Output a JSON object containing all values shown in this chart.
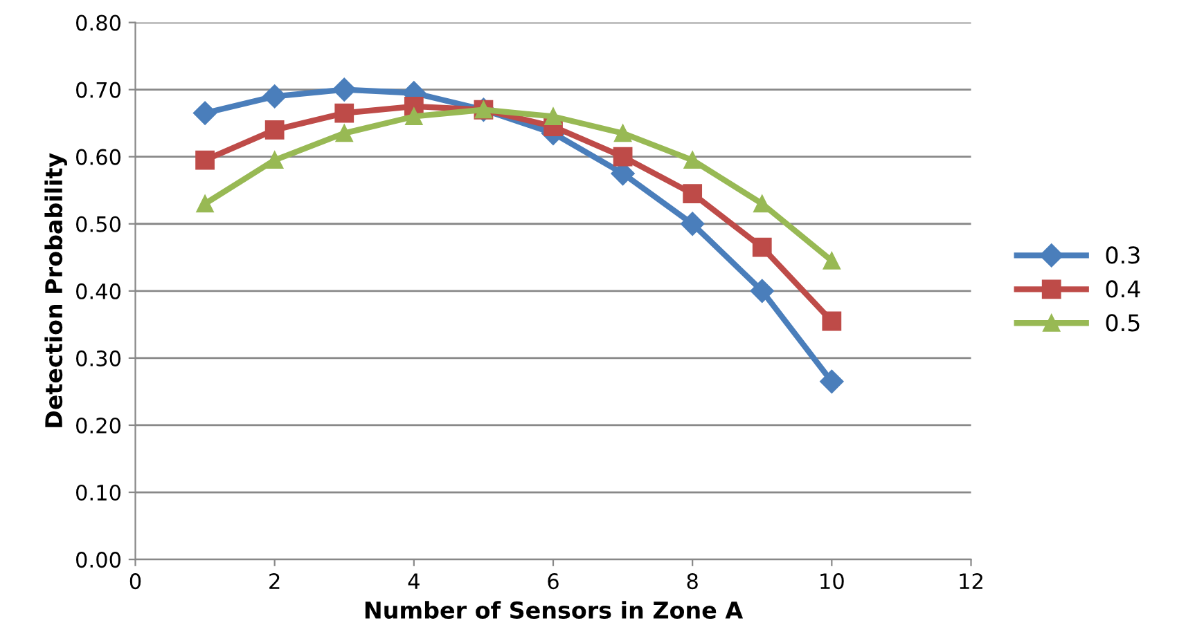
{
  "chart_data": {
    "type": "line",
    "xlabel": "Number of Sensors in Zone A",
    "ylabel": "Detection Probability",
    "x": [
      1,
      2,
      3,
      4,
      5,
      6,
      7,
      8,
      9,
      10
    ],
    "series": [
      {
        "name": "0.3",
        "color": "#4a7ebb",
        "marker": "diamond",
        "values": [
          0.665,
          0.69,
          0.7,
          0.695,
          0.67,
          0.635,
          0.575,
          0.5,
          0.4,
          0.265
        ]
      },
      {
        "name": "0.4",
        "color": "#be4b48",
        "marker": "square",
        "values": [
          0.595,
          0.64,
          0.665,
          0.675,
          0.67,
          0.645,
          0.6,
          0.545,
          0.465,
          0.355
        ]
      },
      {
        "name": "0.5",
        "color": "#98b954",
        "marker": "triangle",
        "values": [
          0.53,
          0.595,
          0.635,
          0.66,
          0.67,
          0.66,
          0.635,
          0.595,
          0.53,
          0.445
        ]
      }
    ],
    "xlim": [
      0,
      12
    ],
    "xticks": [
      0,
      2,
      4,
      6,
      8,
      10,
      12
    ],
    "ylim": [
      0,
      0.8
    ],
    "yticks": [
      {
        "value": 0,
        "label": "0.00"
      },
      {
        "value": 0.1,
        "label": "0.10"
      },
      {
        "value": 0.2,
        "label": "0.20"
      },
      {
        "value": 0.3,
        "label": "0.30"
      },
      {
        "value": 0.4,
        "label": "0.40"
      },
      {
        "value": 0.5,
        "label": "0.50"
      },
      {
        "value": 0.6,
        "label": "0.60"
      },
      {
        "value": 0.7,
        "label": "0.70"
      },
      {
        "value": 0.8,
        "label": "0.80"
      }
    ],
    "grid": "y",
    "legend": "right",
    "line_style": "solid"
  }
}
